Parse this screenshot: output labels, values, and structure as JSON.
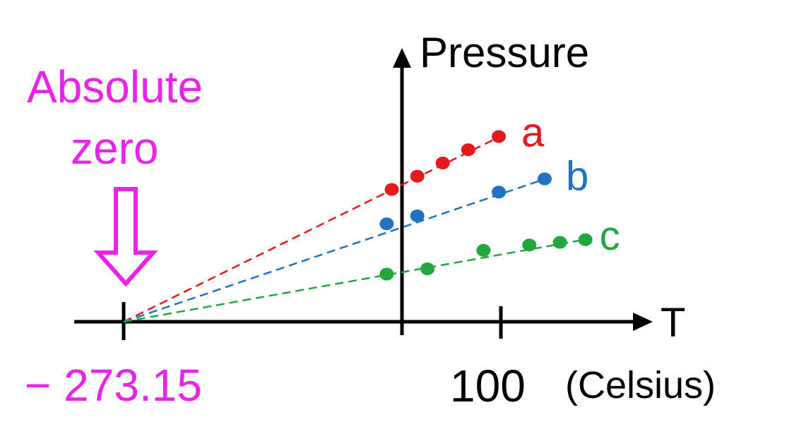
{
  "annotation": {
    "line1": "Absolute",
    "line2": "zero",
    "value": "− 273.15",
    "color": "#e923e9"
  },
  "axes": {
    "y_label": "Pressure",
    "x_label": "T",
    "tick_label": "100",
    "unit_label": "(Celsius)",
    "color": "#000000"
  },
  "chart_data": {
    "type": "line",
    "xlabel": "T",
    "ylabel": "Pressure",
    "x_unit": "(Celsius)",
    "labeled_ticks": [
      "− 273.15",
      "100"
    ],
    "extrapolated_to_x": -273.15,
    "series": [
      {
        "name": "a",
        "color": "#e8191c",
        "x": [
          -10,
          15,
          40,
          65,
          95
        ],
        "y": [
          50,
          55,
          60,
          65,
          70
        ]
      },
      {
        "name": "b",
        "color": "#1f73c1",
        "x": [
          -15,
          15,
          95,
          140
        ],
        "y": [
          37,
          40,
          49,
          54
        ]
      },
      {
        "name": "c",
        "color": "#24a63f",
        "x": [
          -15,
          25,
          80,
          125,
          155,
          180
        ],
        "y": [
          18,
          20,
          27,
          29,
          30,
          31
        ]
      }
    ]
  }
}
